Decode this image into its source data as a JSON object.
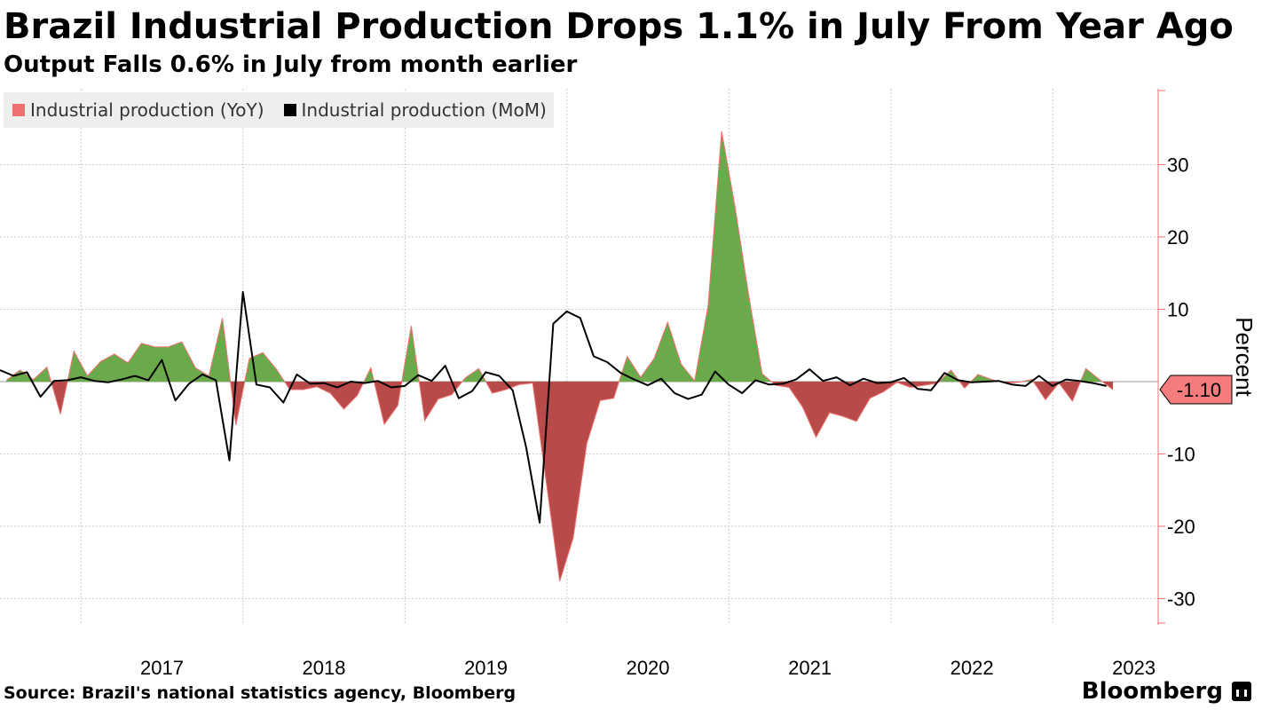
{
  "header": {
    "title": "Brazil Industrial Production Drops 1.1% in July From Year Ago",
    "subtitle": "Output Falls 0.6% in July from month earlier"
  },
  "footer": {
    "source": "Source: Brazil's national statistics agency, Bloomberg",
    "brand": "Bloomberg"
  },
  "colors": {
    "positive_fill": "#6aaa4a",
    "negative_fill": "#b84a4a",
    "yoy_line": "#f07070",
    "mom_line": "#000000",
    "axis": "#f07070",
    "grid": "#cccccc",
    "last_value_label": "#f47c7c"
  },
  "chart_data": {
    "type": "area",
    "title": "Brazil Industrial Production Drops 1.1% in July From Year Ago",
    "subtitle": "Output Falls 0.6% in July from month earlier",
    "ylabel": "Percent",
    "ylim": [
      -34,
      40
    ],
    "yticks": [
      30,
      20,
      10,
      -10,
      -20,
      -30
    ],
    "ytick_labels": [
      "30",
      "20",
      "10",
      "-10",
      "-20",
      "-30"
    ],
    "xrange": [
      2016.5,
      2023.65
    ],
    "xticks": [
      2017,
      2018,
      2019,
      2020,
      2021,
      2022,
      2023
    ],
    "xtick_labels": [
      "2017",
      "2018",
      "2019",
      "2020",
      "2021",
      "2022",
      "2023"
    ],
    "grid": true,
    "legend_position": "top-left",
    "last_value": "-1.10",
    "series": [
      {
        "name": "Industrial production (YoY)",
        "type": "area",
        "x_start": 2016.54,
        "x_step": 0.0833,
        "values": [
          0.2,
          1.6,
          0.3,
          2.0,
          -4.5,
          4.2,
          0.8,
          2.8,
          3.8,
          2.6,
          5.3,
          4.8,
          4.8,
          5.5,
          1.9,
          0.8,
          8.8,
          -6.0,
          3.2,
          4.0,
          1.7,
          -1.1,
          -1.1,
          -0.7,
          -1.6,
          -3.8,
          -1.9,
          1.9,
          -5.9,
          -3.3,
          7.7,
          -5.4,
          -2.4,
          -1.8,
          0.5,
          1.8,
          -1.6,
          -1.1,
          -0.4,
          -0.2,
          -13.8,
          -27.6,
          -21.6,
          -8.6,
          -2.6,
          -2.3,
          3.5,
          0.6,
          3.2,
          8.2,
          2.4,
          0.1,
          10.5,
          34.6,
          24.1,
          12.0,
          1.1,
          -0.5,
          -0.8,
          -3.5,
          -7.7,
          -4.3,
          -4.8,
          -5.5,
          -2.3,
          -1.4,
          -0.1,
          -0.8,
          -0.5,
          -0.2,
          1.6,
          -0.9,
          1.0,
          0.3,
          -0.2,
          -0.1,
          0.3,
          -2.5,
          -0.2,
          -2.7,
          1.8,
          0.3,
          -1.1
        ]
      },
      {
        "name": "Industrial production (MoM)",
        "type": "line",
        "x_start": 2016.5,
        "x_step": 0.0833,
        "values": [
          1.6,
          0.8,
          1.3,
          -2.1,
          0.1,
          0.2,
          0.6,
          0.1,
          -0.1,
          0.3,
          0.8,
          0.2,
          3.0,
          -2.6,
          -0.3,
          1.0,
          0.2,
          -10.9,
          12.4,
          -0.4,
          -0.8,
          -2.9,
          1.0,
          -0.3,
          -0.2,
          -0.8,
          0.0,
          -0.2,
          0.1,
          -0.8,
          -0.6,
          0.9,
          0.1,
          2.2,
          -2.3,
          -1.3,
          1.3,
          0.8,
          -1.2,
          -9.1,
          -19.5,
          8.0,
          9.7,
          8.8,
          3.5,
          2.7,
          1.2,
          0.3,
          -0.5,
          0.4,
          -1.6,
          -2.4,
          -1.8,
          1.4,
          -0.4,
          -1.6,
          0.2,
          -0.4,
          -0.3,
          0.3,
          1.7,
          0.1,
          0.6,
          -0.5,
          0.4,
          -0.2,
          -0.1,
          0.5,
          -1.0,
          -1.2,
          1.2,
          0.2,
          -0.1,
          0.0,
          0.1,
          -0.4,
          -0.6,
          0.8,
          -0.6,
          0.3,
          0.1,
          -0.2,
          -0.6
        ]
      }
    ]
  }
}
